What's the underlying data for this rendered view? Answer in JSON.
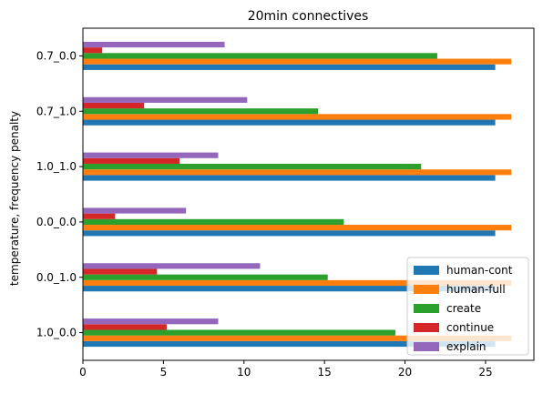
{
  "chart_data": {
    "type": "bar",
    "orientation": "horizontal",
    "title": "20min connectives",
    "xlabel": "",
    "ylabel": "temperature, frequency penalty",
    "xlim": [
      0,
      28
    ],
    "xticks": [
      0,
      5,
      10,
      15,
      20,
      25
    ],
    "categories": [
      "1.0_0.0",
      "0.0_1.0",
      "0.0_0.0",
      "1.0_1.0",
      "0.7_1.0",
      "0.7_0.0"
    ],
    "series": [
      {
        "name": "human-cont",
        "color": "#1f77b4",
        "values": [
          25.6,
          25.6,
          25.6,
          25.6,
          25.6,
          25.6
        ]
      },
      {
        "name": "human-full",
        "color": "#ff7f0e",
        "values": [
          26.6,
          26.6,
          26.6,
          26.6,
          26.6,
          26.6
        ]
      },
      {
        "name": "create",
        "color": "#2ca02c",
        "values": [
          19.4,
          15.2,
          16.2,
          21.0,
          14.6,
          22.0
        ]
      },
      {
        "name": "continue",
        "color": "#d62728",
        "values": [
          5.2,
          4.6,
          2.0,
          6.0,
          3.8,
          1.2
        ]
      },
      {
        "name": "explain",
        "color": "#9467bd",
        "values": [
          8.4,
          11.0,
          6.4,
          8.4,
          10.2,
          8.8
        ]
      }
    ],
    "legend_position": "lower-right",
    "grid": false
  }
}
